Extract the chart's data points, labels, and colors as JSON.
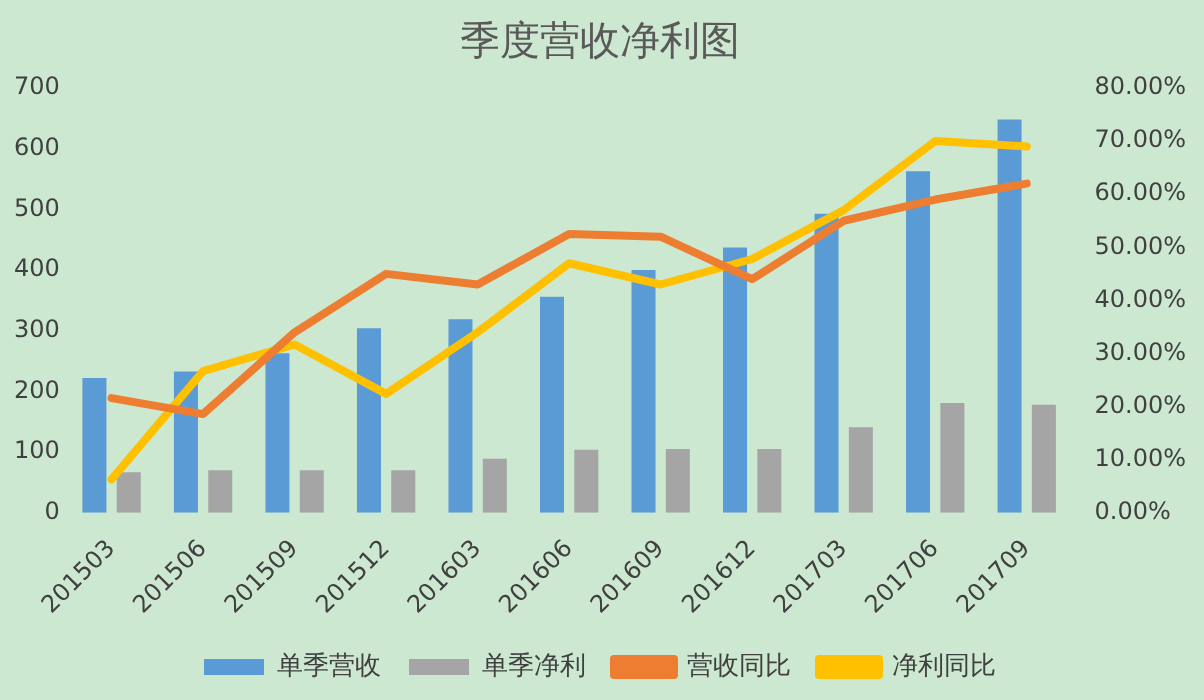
{
  "chart_data": {
    "type": "bar",
    "title": "季度营收净利图",
    "categories": [
      "201503",
      "201506",
      "201509",
      "201512",
      "201603",
      "201606",
      "201609",
      "201612",
      "201703",
      "201706",
      "201709"
    ],
    "series": [
      {
        "name": "单季营收",
        "color": "#5b9bd5",
        "values": [
          222,
          233,
          263,
          304,
          319,
          356,
          400,
          437,
          493,
          563,
          648
        ]
      },
      {
        "name": "单季净利",
        "color": "#a5a5a5",
        "values": [
          67,
          70,
          70,
          70,
          89,
          104,
          105,
          105,
          141,
          181,
          178
        ]
      },
      {
        "name": "营收同比",
        "type": "line",
        "axis": "y2",
        "color": "#ed7d31",
        "values": [
          21.6,
          18.6,
          34,
          45,
          43,
          52.5,
          52,
          44,
          55,
          59,
          62
        ]
      },
      {
        "name": "净利同比",
        "type": "line",
        "axis": "y2",
        "color": "#ffc000",
        "values": [
          6.3,
          26.7,
          31.7,
          22.4,
          34,
          47,
          43,
          47.8,
          57,
          70,
          69
        ]
      }
    ],
    "ylim": [
      0,
      700
    ],
    "yticks": [
      0,
      100,
      200,
      300,
      400,
      500,
      600,
      700
    ],
    "y2lim": [
      0,
      80
    ],
    "y2ticks": [
      {
        "value": 0,
        "label": "0.00%"
      },
      {
        "value": 10,
        "label": "10.00%"
      },
      {
        "value": 20,
        "label": "20.00%"
      },
      {
        "value": 30,
        "label": "30.00%"
      },
      {
        "value": 40,
        "label": "40.00%"
      },
      {
        "value": 50,
        "label": "50.00%"
      },
      {
        "value": 60,
        "label": "60.00%"
      },
      {
        "value": 70,
        "label": "70.00%"
      },
      {
        "value": 80,
        "label": "80.00%"
      }
    ],
    "grid": false,
    "legend": "bottom",
    "marker": "none"
  }
}
